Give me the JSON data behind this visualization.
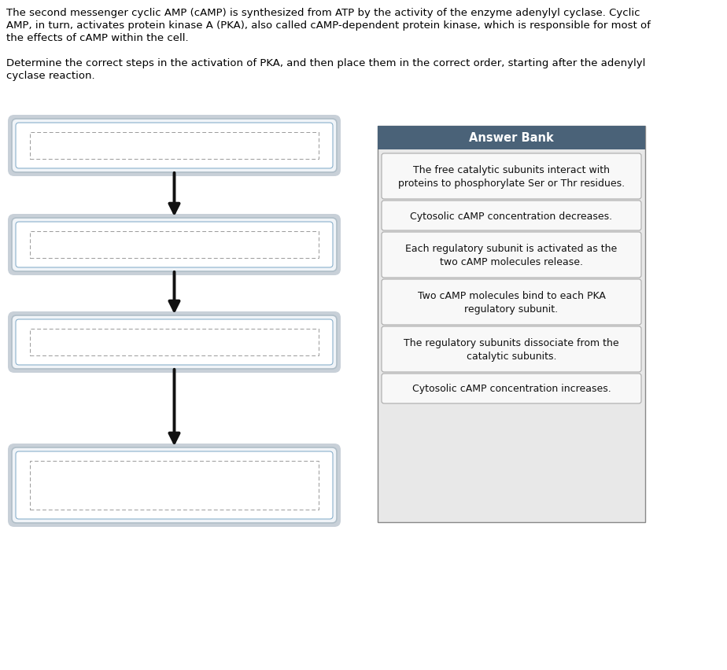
{
  "answer_bank_title": "Answer Bank",
  "answer_bank_header_color": "#4a6278",
  "answer_bank_header_text_color": "#ffffff",
  "answer_items": [
    "The free catalytic subunits interact with\nproteins to phosphorylate Ser or Thr residues.",
    "Cytosolic cAMP concentration decreases.",
    "Each regulatory subunit is activated as the\ntwo cAMP molecules release.",
    "Two cAMP molecules bind to each PKA\nregulatory subunit.",
    "The regulatory subunits dissociate from the\ncatalytic subunits.",
    "Cytosolic cAMP concentration increases."
  ],
  "arrow_color": "#111111",
  "background_color": "#ffffff",
  "body_lines": [
    "The second messenger cyclic AMP (cAMP) is synthesized from ATP by the activity of the enzyme adenylyl cyclase. Cyclic",
    "AMP, in turn, activates protein kinase A (PKA), also called cAMP-dependent protein kinase, which is responsible for most of",
    "the effects of cAMP within the cell.",
    "",
    "Determine the correct steps in the activation of PKA, and then place them in the correct order, starting after the adenylyl",
    "cyclase reaction."
  ]
}
